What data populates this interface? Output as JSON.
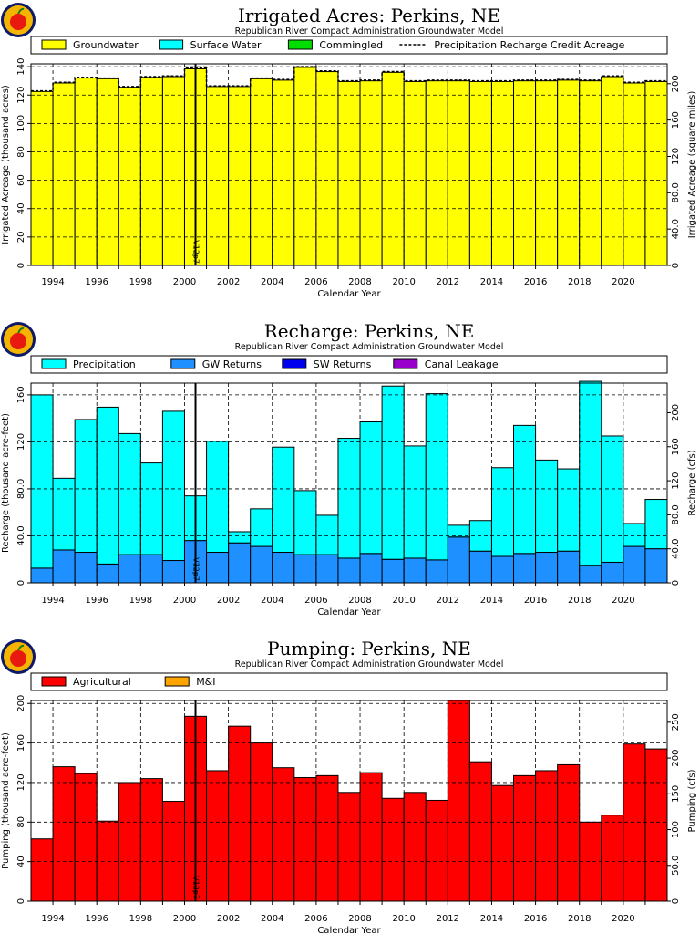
{
  "chart_data": [
    {
      "type": "bar",
      "stacked": true,
      "title": "Irrigated Acres: Perkins, NE",
      "subtitle": "Republican River Compact Administration Groundwater Model",
      "xlabel": "Calendar Year",
      "ylabel": "Irrigated Acreage (thousand acres)",
      "y2label": "Irrigated Acreage (square miles)",
      "xlim": [
        1993,
        2022
      ],
      "ylim": [
        0,
        142
      ],
      "y2lim": [
        0,
        221.9
      ],
      "yticks": [
        "0",
        "20",
        "40",
        "60",
        "80",
        "100",
        "120",
        "140"
      ],
      "y2ticks": [
        "0",
        "40.0",
        "80.0",
        "120",
        "160",
        "200"
      ],
      "xticks": [
        "1994",
        "1996",
        "1998",
        "2000",
        "2002",
        "2004",
        "2006",
        "2008",
        "2010",
        "2012",
        "2014",
        "2016",
        "2018",
        "2020"
      ],
      "legend": "top",
      "grid": true,
      "years": [
        1993,
        1994,
        1995,
        1996,
        1997,
        1998,
        1999,
        2000,
        2001,
        2002,
        2003,
        2004,
        2005,
        2006,
        2007,
        2008,
        2009,
        2010,
        2011,
        2012,
        2013,
        2014,
        2015,
        2016,
        2017,
        2018,
        2019,
        2020,
        2021
      ],
      "series": [
        {
          "name": "Groundwater",
          "color": "#ffff00",
          "values": [
            122.5,
            128.5,
            132,
            131.5,
            125.5,
            132.5,
            133,
            138.5,
            126,
            126,
            131.5,
            130.5,
            139.5,
            136.5,
            129.5,
            130,
            136,
            129.5,
            130,
            130,
            129.5,
            129.5,
            130,
            130,
            130.5,
            130,
            133,
            128.5,
            129.5
          ]
        },
        {
          "name": "Surface Water",
          "color": "#00ffff",
          "values": []
        },
        {
          "name": "Commingled",
          "color": "#00dd00",
          "values": []
        }
      ],
      "line_series": {
        "name": "Precipitation Recharge Credit Acreage",
        "style": "dashed",
        "values": [
          123,
          129,
          132.5,
          132,
          126,
          133,
          133.5,
          139,
          126.5,
          126.5,
          132,
          131,
          140,
          137,
          130,
          130.5,
          136.5,
          130,
          130.5,
          130.5,
          130,
          130,
          130.5,
          130.5,
          131,
          130.5,
          133.5,
          129,
          130
        ]
      },
      "marker": {
        "year": 2000.5,
        "label": "V12p7"
      }
    },
    {
      "type": "bar",
      "stacked": true,
      "title": "Recharge: Perkins, NE",
      "subtitle": "Republican River Compact Administration Groundwater Model",
      "xlabel": "Calendar Year",
      "ylabel": "Recharge (thousand acre-feet)",
      "y2label": "Recharge (cfs)",
      "xlim": [
        1993,
        2022
      ],
      "ylim": [
        0,
        170
      ],
      "y2lim": [
        0,
        234.8
      ],
      "yticks": [
        "0",
        "40.0",
        "80.0",
        "120",
        "160"
      ],
      "y2ticks": [
        "0",
        "40.0",
        "80.0",
        "120",
        "160",
        "200"
      ],
      "xticks": [
        "1994",
        "1996",
        "1998",
        "2000",
        "2002",
        "2004",
        "2006",
        "2008",
        "2010",
        "2012",
        "2014",
        "2016",
        "2018",
        "2020"
      ],
      "legend": "top",
      "grid": true,
      "years": [
        1993,
        1994,
        1995,
        1996,
        1997,
        1998,
        1999,
        2000,
        2001,
        2002,
        2003,
        2004,
        2005,
        2006,
        2007,
        2008,
        2009,
        2010,
        2011,
        2012,
        2013,
        2014,
        2015,
        2016,
        2017,
        2018,
        2019,
        2020,
        2021
      ],
      "series": [
        {
          "name": "GW Returns",
          "color": "#1e90ff",
          "values": [
            12.5,
            28,
            26,
            16,
            24,
            24,
            19,
            36,
            26,
            34,
            31,
            26,
            24,
            24,
            21,
            25,
            20,
            21,
            19.5,
            39,
            27,
            22.5,
            25,
            26,
            27,
            15,
            17.5,
            31,
            29
          ]
        },
        {
          "name": "Precipitation",
          "color": "#00ffff",
          "values": [
            147.5,
            61,
            113,
            133.5,
            103,
            78,
            127,
            38,
            94.5,
            9.5,
            32,
            89.5,
            54.5,
            33.5,
            102,
            112,
            147.5,
            95.5,
            141.5,
            10,
            26,
            75.5,
            109,
            78.5,
            70,
            156.5,
            107.5,
            19.5,
            42
          ]
        },
        {
          "name": "SW Returns",
          "color": "#0000ee",
          "values": []
        },
        {
          "name": "Canal Leakage",
          "color": "#9900cc",
          "values": []
        }
      ],
      "marker": {
        "year": 2000.5,
        "label": "V12p7"
      }
    },
    {
      "type": "bar",
      "stacked": true,
      "title": "Pumping: Perkins, NE",
      "subtitle": "Republican River Compact Administration Groundwater Model",
      "xlabel": "Calendar Year",
      "ylabel": "Pumping (thousand acre-feet)",
      "y2label": "Pumping (cfs)",
      "xlim": [
        1993,
        2022
      ],
      "ylim": [
        0,
        203
      ],
      "y2lim": [
        0,
        280.4
      ],
      "yticks": [
        "0",
        "40",
        "80",
        "120",
        "160",
        "200"
      ],
      "y2ticks": [
        "0",
        "50.0",
        "100",
        "150",
        "200",
        "250"
      ],
      "xticks": [
        "1994",
        "1996",
        "1998",
        "2000",
        "2002",
        "2004",
        "2006",
        "2008",
        "2010",
        "2012",
        "2014",
        "2016",
        "2018",
        "2020"
      ],
      "legend": "top",
      "grid": true,
      "years": [
        1993,
        1994,
        1995,
        1996,
        1997,
        1998,
        1999,
        2000,
        2001,
        2002,
        2003,
        2004,
        2005,
        2006,
        2007,
        2008,
        2009,
        2010,
        2011,
        2012,
        2013,
        2014,
        2015,
        2016,
        2017,
        2018,
        2019,
        2020,
        2021
      ],
      "series": [
        {
          "name": "Agricultural",
          "color": "#ff0000",
          "values": [
            63,
            136,
            129,
            81,
            120,
            124,
            101,
            187,
            132,
            177,
            160,
            135,
            125,
            127,
            110,
            130,
            104,
            110,
            102,
            203,
            141,
            117,
            127,
            132,
            138,
            80,
            87,
            159,
            154
          ]
        },
        {
          "name": "M&I",
          "color": "#ffa500",
          "values": []
        }
      ],
      "marker": {
        "year": 2000.5,
        "label": "V12p7"
      }
    }
  ]
}
